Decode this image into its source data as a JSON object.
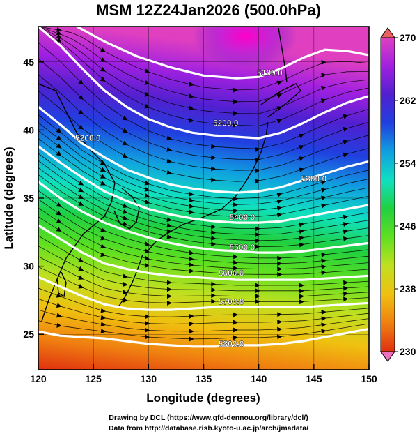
{
  "title": "MSM 12Z24Jan2026 (500.0hPa)",
  "credits": {
    "line1": "Drawing by DCL (https://www.gfd-dennou.org/library/dcl/)",
    "line2": "Data from http://database.rish.kyoto-u.ac.jp/arch/jmadata/"
  },
  "chart_data": {
    "type": "heatmap",
    "xlabel": "Longitude (degrees)",
    "ylabel": "Latitude  (degrees)",
    "xlim": [
      120,
      150
    ],
    "ylim": [
      22.4,
      47.6
    ],
    "xticks": [
      120,
      125,
      130,
      135,
      140,
      145,
      150
    ],
    "yticks": [
      25,
      30,
      35,
      40,
      45
    ],
    "grid": true,
    "colorbar": {
      "range": [
        230,
        270
      ],
      "tick_labels": [
        230,
        238,
        246,
        254,
        262,
        270
      ],
      "placement": "right",
      "colors": [
        "#e040c0",
        "#a020e0",
        "#5020d0",
        "#2040e0",
        "#10a0e0",
        "#10e0c0",
        "#20d040",
        "#60e020",
        "#c0e020",
        "#f0c010",
        "#f08010",
        "#e03010"
      ]
    },
    "contours": [
      {
        "label": "5100.0",
        "lon": [
          123.5,
          126,
          129,
          132,
          135,
          138,
          140,
          142,
          144,
          146,
          148,
          150
        ],
        "lat": [
          47.6,
          46.5,
          45.4,
          44.6,
          44.0,
          43.8,
          43.9,
          44.5,
          45.3,
          45.9,
          45.8,
          45.5
        ]
      },
      {
        "label": "5200.0",
        "lon": [
          120,
          122,
          124,
          126,
          128,
          130,
          132,
          134,
          136,
          138,
          140,
          142,
          144,
          146,
          148,
          150
        ],
        "lat": [
          47.6,
          46.2,
          44.5,
          42.9,
          41.7,
          40.8,
          40.2,
          39.8,
          39.6,
          39.5,
          39.4,
          39.8,
          40.5,
          41.3,
          42.0,
          42.5
        ]
      },
      {
        "label": "5300.0",
        "lon": [
          120,
          122,
          124,
          126,
          128,
          130,
          132,
          134,
          136,
          138,
          140,
          142,
          144,
          146,
          148,
          150
        ],
        "lat": [
          41.7,
          40.4,
          39.0,
          38.0,
          37.1,
          36.5,
          36.0,
          35.7,
          35.5,
          35.4,
          35.5,
          35.8,
          36.3,
          36.8,
          37.3,
          37.7
        ]
      },
      {
        "label": "5400.0",
        "lon": [
          120,
          122,
          124,
          126,
          128,
          130,
          132,
          134,
          136,
          138,
          140,
          142,
          144,
          146,
          148,
          150
        ],
        "lat": [
          38.8,
          37.6,
          36.5,
          35.5,
          34.8,
          34.2,
          33.8,
          33.5,
          33.3,
          33.2,
          33.2,
          33.3,
          33.6,
          33.9,
          34.2,
          34.5
        ]
      },
      {
        "label": "5500.0",
        "lon": [
          120,
          122,
          124,
          126,
          128,
          130,
          132,
          134,
          136,
          138,
          140,
          142,
          144,
          146,
          148,
          150
        ],
        "lat": [
          36.2,
          35.0,
          34.0,
          33.2,
          32.6,
          32.1,
          31.7,
          31.4,
          31.2,
          31.1,
          31.0,
          31.0,
          31.1,
          31.3,
          31.5,
          31.7
        ]
      },
      {
        "label": "5600.0",
        "lon": [
          120,
          122,
          124,
          126,
          128,
          130,
          132,
          134,
          136,
          138,
          140,
          142,
          144,
          146,
          148,
          150
        ],
        "lat": [
          33.0,
          32.0,
          31.0,
          30.2,
          29.8,
          29.5,
          29.3,
          29.2,
          29.1,
          29.0,
          29.0,
          29.0,
          29.0,
          29.1,
          29.2,
          29.3
        ]
      },
      {
        "label": "5700.0",
        "lon": [
          120,
          122,
          124,
          126,
          128,
          130,
          132,
          134,
          136,
          138,
          140,
          142,
          144,
          146,
          148,
          150
        ],
        "lat": [
          29.2,
          28.5,
          27.8,
          27.2,
          26.9,
          26.8,
          26.8,
          26.9,
          27.0,
          27.0,
          27.0,
          27.0,
          27.0,
          27.1,
          27.2,
          27.3
        ]
      },
      {
        "label": "5800.0",
        "lon": [
          120,
          122,
          124,
          126,
          128,
          130,
          132,
          134,
          136,
          138,
          140,
          142,
          144,
          146,
          148,
          150
        ],
        "lat": [
          25.2,
          24.9,
          24.8,
          24.7,
          24.5,
          24.3,
          24.2,
          24.1,
          24.1,
          24.2,
          24.2,
          24.3,
          24.5,
          24.8,
          25.1,
          25.4
        ]
      }
    ],
    "contour_label_positions": [
      {
        "label": "5100.0",
        "lon": 141.0,
        "lat": 44.2
      },
      {
        "label": "5200.0",
        "lon": 137.0,
        "lat": 40.5
      },
      {
        "label": "5200.0",
        "lon": 124.5,
        "lat": 39.4
      },
      {
        "label": "5300.0",
        "lon": 145.0,
        "lat": 36.4
      },
      {
        "label": "5400.0",
        "lon": 138.5,
        "lat": 33.6
      },
      {
        "label": "5500.0",
        "lon": 138.5,
        "lat": 31.4
      },
      {
        "label": "5600.0",
        "lon": 137.5,
        "lat": 29.5
      },
      {
        "label": "5700.0",
        "lon": 137.5,
        "lat": 27.4
      },
      {
        "label": "5800.0",
        "lon": 137.5,
        "lat": 24.3
      }
    ]
  }
}
